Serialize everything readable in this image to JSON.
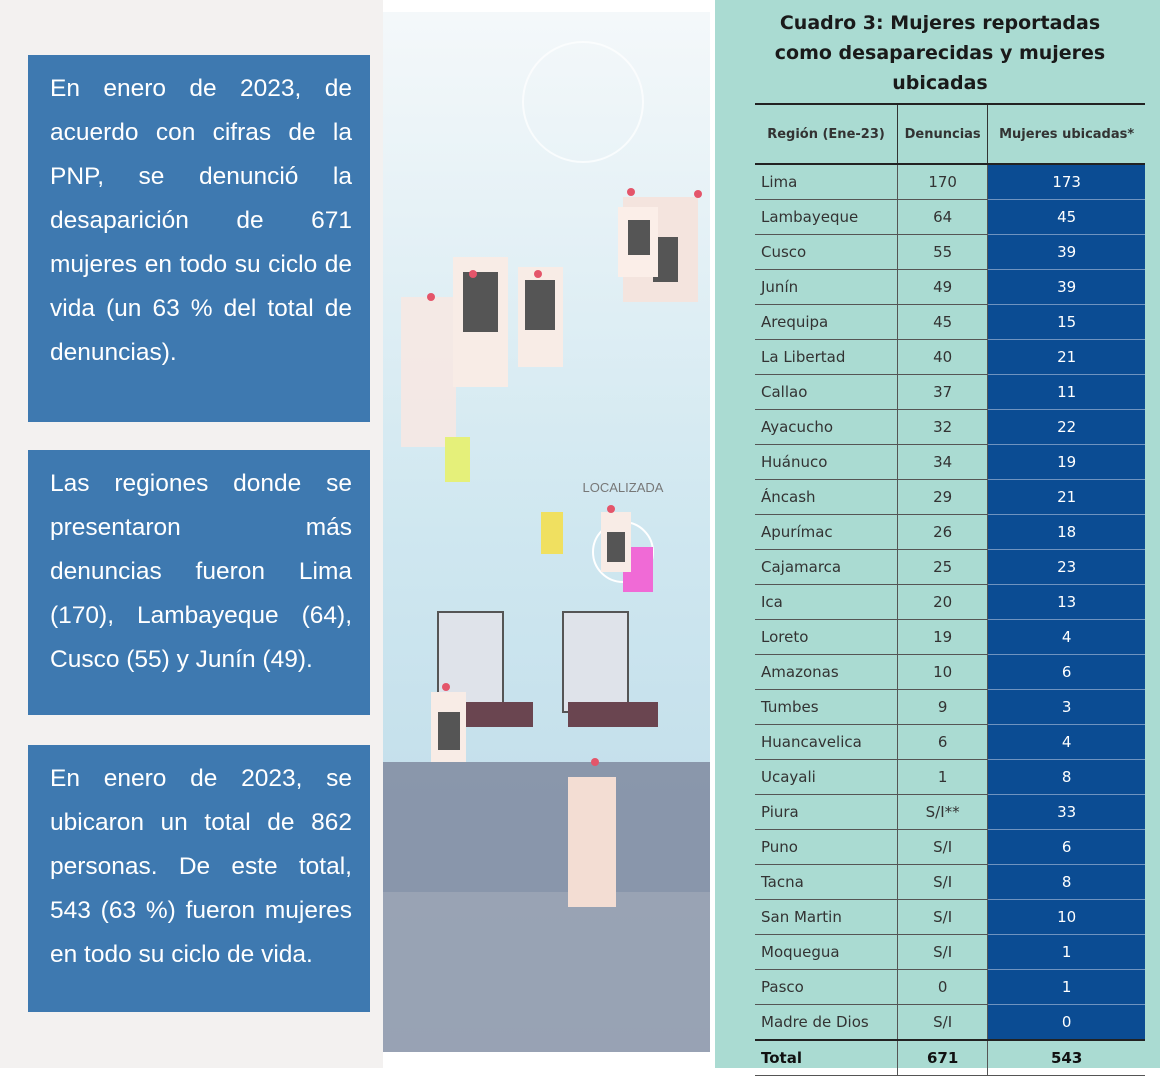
{
  "left_boxes": [
    "En enero de 2023, de acuerdo con cifras de la PNP, se denunció la desaparición de 671 mujeres en todo su ciclo de vida (un 63 % del total de denuncias).",
    "Las regiones donde se presentaron más denuncias fueron Lima (170), Lambayeque (64), Cusco (55) y Junín (49).",
    "En enero de 2023, se ubicaron un total de 862 personas. De este total, 543 (63 %) fueron mujeres en todo su ciclo de vida."
  ],
  "illustration": {
    "label": "LOCALIZADA"
  },
  "table": {
    "title": "Cuadro 3: Mujeres reportadas como desaparecidas y mujeres ubicadas",
    "headers": [
      "Región (Ene-23)",
      "Denuncias",
      "Mujeres ubicadas*"
    ],
    "rows": [
      [
        "Lima",
        "170",
        "173"
      ],
      [
        "Lambayeque",
        "64",
        "45"
      ],
      [
        "Cusco",
        "55",
        "39"
      ],
      [
        "Junín",
        "49",
        "39"
      ],
      [
        "Arequipa",
        "45",
        "15"
      ],
      [
        "La Libertad",
        "40",
        "21"
      ],
      [
        "Callao",
        "37",
        "11"
      ],
      [
        "Ayacucho",
        "32",
        "22"
      ],
      [
        "Huánuco",
        "34",
        "19"
      ],
      [
        "Áncash",
        "29",
        "21"
      ],
      [
        "Apurímac",
        "26",
        "18"
      ],
      [
        "Cajamarca",
        "25",
        "23"
      ],
      [
        "Ica",
        "20",
        "13"
      ],
      [
        "Loreto",
        "19",
        "4"
      ],
      [
        "Amazonas",
        "10",
        "6"
      ],
      [
        "Tumbes",
        "9",
        "3"
      ],
      [
        "Huancavelica",
        "6",
        "4"
      ],
      [
        "Ucayali",
        "1",
        "8"
      ],
      [
        "Piura",
        "S/I**",
        "33"
      ],
      [
        "Puno",
        "S/I",
        "6"
      ],
      [
        "Tacna",
        "S/I",
        "8"
      ],
      [
        "San Martin",
        "S/I",
        "10"
      ],
      [
        "Moquegua",
        "S/I",
        "1"
      ],
      [
        "Pasco",
        "0",
        "1"
      ],
      [
        "Madre de Dios",
        "S/I",
        "0"
      ]
    ],
    "total": [
      "Total",
      "671",
      "543"
    ]
  }
}
